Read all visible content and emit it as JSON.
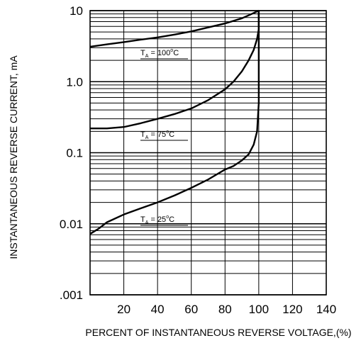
{
  "chart_data": {
    "type": "line",
    "title": "",
    "xlabel": "PERCENT OF INSTANTANEOUS REVERSE VOLTAGE,(%)",
    "ylabel": "INSTANTANEOUS REVERSE CURRENT, mA",
    "x_scale": "linear",
    "y_scale": "log",
    "xlim": [
      0,
      140
    ],
    "ylim": [
      0.001,
      10
    ],
    "xticks": [
      20,
      40,
      60,
      80,
      100,
      120,
      140
    ],
    "xtick_labels": [
      "20",
      "40",
      "60",
      "80",
      "100",
      "120",
      "140"
    ],
    "yticks": [
      0.001,
      0.01,
      0.1,
      1,
      10
    ],
    "ytick_labels": [
      ".001",
      "0.01",
      "0.1",
      "1.0",
      "10"
    ],
    "grid": true,
    "series": [
      {
        "name": "TA = 100°C",
        "label": {
          "base": "T",
          "sub": "A",
          "mid": " = 100",
          "sup": "o",
          "end": "C"
        },
        "x": [
          0,
          10,
          20,
          30,
          40,
          50,
          60,
          70,
          80,
          90,
          95,
          100
        ],
        "y": [
          3.1,
          3.35,
          3.6,
          3.9,
          4.2,
          4.6,
          5.1,
          5.8,
          6.6,
          7.8,
          8.8,
          10
        ]
      },
      {
        "name": "TA = 75°C",
        "label": {
          "base": "T",
          "sub": "A",
          "mid": " = 75",
          "sup": "o",
          "end": "C"
        },
        "x": [
          0,
          10,
          20,
          30,
          40,
          50,
          60,
          70,
          80,
          85,
          90,
          94,
          97,
          99,
          100,
          100
        ],
        "y": [
          0.22,
          0.22,
          0.23,
          0.26,
          0.3,
          0.35,
          0.42,
          0.55,
          0.78,
          1.0,
          1.4,
          2.0,
          2.8,
          4.0,
          5.5,
          10
        ]
      },
      {
        "name": "TA = 25°C",
        "label": {
          "base": "T",
          "sub": "A",
          "mid": " = 25",
          "sup": "o",
          "end": "C"
        },
        "x": [
          0,
          5,
          10,
          20,
          30,
          40,
          50,
          60,
          70,
          80,
          85,
          90,
          94,
          97,
          99,
          100,
          100
        ],
        "y": [
          0.0072,
          0.0085,
          0.0105,
          0.0135,
          0.0165,
          0.02,
          0.025,
          0.032,
          0.042,
          0.058,
          0.065,
          0.078,
          0.095,
          0.13,
          0.2,
          0.5,
          10
        ]
      }
    ]
  }
}
